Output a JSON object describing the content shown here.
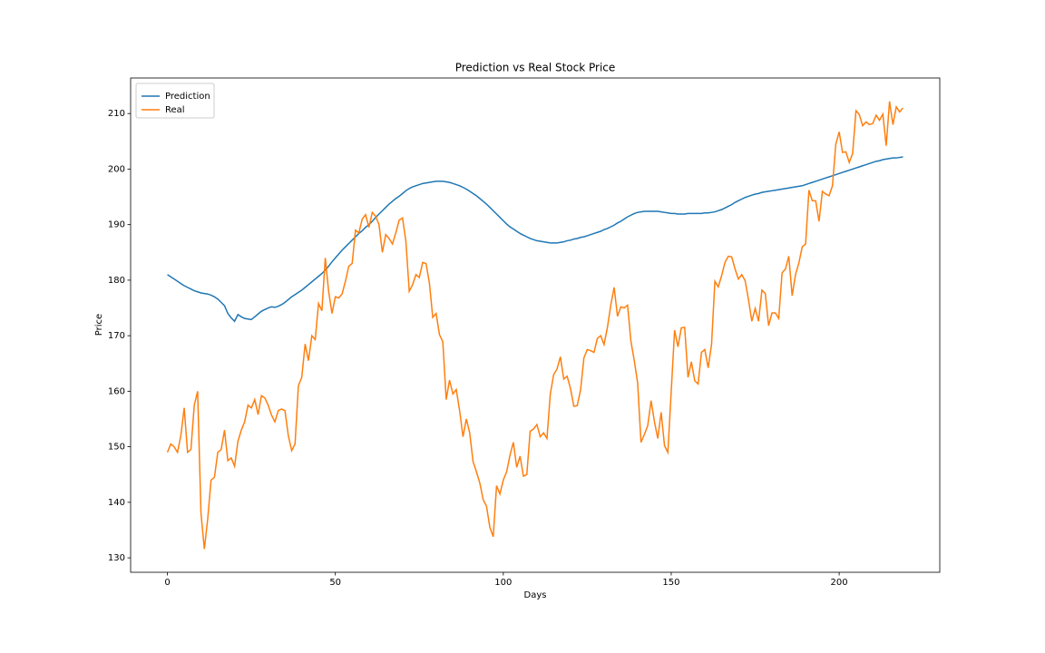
{
  "chart_data": {
    "type": "line",
    "title": "Prediction vs Real Stock Price",
    "x_label": "Days",
    "y_label": "Price",
    "x": [
      0,
      1,
      2,
      3,
      4,
      5,
      6,
      7,
      8,
      9,
      10,
      11,
      12,
      13,
      14,
      15,
      16,
      17,
      18,
      19,
      20,
      21,
      22,
      23,
      24,
      25,
      26,
      27,
      28,
      29,
      30,
      31,
      32,
      33,
      34,
      35,
      36,
      37,
      38,
      39,
      40,
      41,
      42,
      43,
      44,
      45,
      46,
      47,
      48,
      49,
      50,
      51,
      52,
      53,
      54,
      55,
      56,
      57,
      58,
      59,
      60,
      61,
      62,
      63,
      64,
      65,
      66,
      67,
      68,
      69,
      70,
      71,
      72,
      73,
      74,
      75,
      76,
      77,
      78,
      79,
      80,
      81,
      82,
      83,
      84,
      85,
      86,
      87,
      88,
      89,
      90,
      91,
      92,
      93,
      94,
      95,
      96,
      97,
      98,
      99,
      100,
      101,
      102,
      103,
      104,
      105,
      106,
      107,
      108,
      109,
      110,
      111,
      112,
      113,
      114,
      115,
      116,
      117,
      118,
      119,
      120,
      121,
      122,
      123,
      124,
      125,
      126,
      127,
      128,
      129,
      130,
      131,
      132,
      133,
      134,
      135,
      136,
      137,
      138,
      139,
      140,
      141,
      142,
      143,
      144,
      145,
      146,
      147,
      148,
      149,
      150,
      151,
      152,
      153,
      154,
      155,
      156,
      157,
      158,
      159,
      160,
      161,
      162,
      163,
      164,
      165,
      166,
      167,
      168,
      169,
      170,
      171,
      172,
      173,
      174,
      175,
      176,
      177,
      178,
      179,
      180,
      181,
      182,
      183,
      184,
      185,
      186,
      187,
      188,
      189,
      190,
      191,
      192,
      193,
      194,
      195,
      196,
      197,
      198,
      199,
      200,
      201,
      202,
      203,
      204,
      205,
      206,
      207,
      208,
      209,
      210,
      211,
      212,
      213,
      214,
      215,
      216,
      217,
      218,
      219
    ],
    "series": [
      {
        "name": "Prediction",
        "color": "#1f77b4",
        "values": [
          181.0,
          180.6,
          180.2,
          179.8,
          179.4,
          179.0,
          178.7,
          178.4,
          178.1,
          177.9,
          177.7,
          177.6,
          177.5,
          177.3,
          177.0,
          176.6,
          176.0,
          175.4,
          174.0,
          173.2,
          172.6,
          173.8,
          173.4,
          173.1,
          173.0,
          172.9,
          173.4,
          173.9,
          174.4,
          174.7,
          175.0,
          175.2,
          175.1,
          175.3,
          175.6,
          176.0,
          176.5,
          177.0,
          177.4,
          177.8,
          178.2,
          178.7,
          179.2,
          179.7,
          180.2,
          180.7,
          181.2,
          181.8,
          182.5,
          183.3,
          184.0,
          184.7,
          185.4,
          186.0,
          186.6,
          187.2,
          187.8,
          188.4,
          188.9,
          189.5,
          190.0,
          190.6,
          191.3,
          191.9,
          192.5,
          193.1,
          193.7,
          194.2,
          194.7,
          195.1,
          195.6,
          196.1,
          196.5,
          196.8,
          197.0,
          197.2,
          197.4,
          197.5,
          197.6,
          197.7,
          197.8,
          197.8,
          197.8,
          197.7,
          197.6,
          197.4,
          197.2,
          197.0,
          196.7,
          196.4,
          196.0,
          195.6,
          195.2,
          194.7,
          194.2,
          193.7,
          193.1,
          192.5,
          191.9,
          191.3,
          190.7,
          190.1,
          189.6,
          189.2,
          188.8,
          188.4,
          188.1,
          187.8,
          187.5,
          187.3,
          187.1,
          187.0,
          186.9,
          186.8,
          186.7,
          186.7,
          186.7,
          186.8,
          186.9,
          187.1,
          187.2,
          187.4,
          187.5,
          187.7,
          187.8,
          188.0,
          188.2,
          188.4,
          188.6,
          188.8,
          189.1,
          189.3,
          189.6,
          189.9,
          190.3,
          190.6,
          191.0,
          191.4,
          191.7,
          192.0,
          192.2,
          192.3,
          192.4,
          192.4,
          192.4,
          192.4,
          192.4,
          192.3,
          192.2,
          192.1,
          192.0,
          192.0,
          191.9,
          191.9,
          191.9,
          192.0,
          192.0,
          192.0,
          192.0,
          192.0,
          192.1,
          192.1,
          192.2,
          192.3,
          192.5,
          192.7,
          193.0,
          193.3,
          193.6,
          194.0,
          194.3,
          194.6,
          194.9,
          195.1,
          195.3,
          195.5,
          195.6,
          195.8,
          195.9,
          196.0,
          196.1,
          196.2,
          196.3,
          196.4,
          196.5,
          196.6,
          196.7,
          196.8,
          196.9,
          197.0,
          197.2,
          197.4,
          197.6,
          197.8,
          198.0,
          198.2,
          198.4,
          198.6,
          198.8,
          199.0,
          199.2,
          199.4,
          199.6,
          199.8,
          200.0,
          200.2,
          200.4,
          200.6,
          200.8,
          201.0,
          201.2,
          201.4,
          201.5,
          201.7,
          201.8,
          201.9,
          202.0,
          202.0,
          202.1,
          202.2
        ]
      },
      {
        "name": "Real",
        "color": "#ff7f0e",
        "values": [
          149.0,
          150.5,
          150.0,
          149.0,
          152.0,
          157.0,
          149.0,
          149.5,
          157.5,
          160.0,
          138.0,
          131.6,
          137.0,
          144.0,
          144.5,
          149.0,
          149.5,
          153.0,
          147.5,
          148.0,
          146.5,
          151.0,
          153.0,
          154.5,
          157.5,
          157.0,
          158.5,
          155.8,
          159.2,
          158.8,
          157.5,
          155.7,
          154.5,
          156.5,
          156.8,
          156.5,
          152.0,
          149.3,
          150.5,
          161.0,
          162.5,
          168.5,
          165.5,
          170.0,
          169.3,
          175.8,
          174.5,
          184.0,
          178.0,
          174.0,
          177.0,
          176.8,
          177.5,
          179.8,
          182.5,
          183.0,
          189.0,
          188.5,
          191.0,
          191.8,
          189.5,
          192.2,
          191.5,
          190.0,
          185.0,
          188.2,
          187.5,
          186.5,
          188.5,
          190.8,
          191.2,
          187.0,
          178.0,
          179.2,
          181.0,
          180.5,
          183.2,
          183.0,
          179.5,
          173.3,
          174.0,
          170.2,
          168.9,
          158.5,
          162.0,
          159.5,
          160.3,
          156.5,
          151.8,
          155.0,
          152.5,
          147.3,
          145.5,
          143.5,
          140.5,
          139.3,
          135.5,
          133.8,
          143.0,
          141.5,
          144.0,
          145.5,
          148.5,
          150.8,
          146.3,
          148.3,
          144.7,
          145.0,
          152.8,
          153.2,
          154.0,
          151.8,
          152.5,
          151.5,
          159.5,
          163.0,
          164.0,
          166.2,
          162.2,
          162.7,
          160.5,
          157.3,
          157.4,
          160.2,
          166.0,
          167.5,
          167.3,
          167.0,
          169.5,
          170.0,
          168.4,
          171.5,
          175.5,
          178.7,
          173.5,
          175.2,
          175.0,
          175.5,
          169.0,
          165.5,
          161.5,
          150.8,
          152.2,
          153.8,
          158.3,
          154.5,
          151.5,
          156.2,
          150.2,
          149.0,
          160.0,
          171.0,
          168.0,
          171.4,
          171.5,
          162.5,
          165.3,
          161.9,
          161.3,
          167.0,
          167.5,
          164.2,
          168.4,
          179.8,
          178.8,
          180.8,
          183.2,
          184.3,
          184.2,
          182.0,
          180.2,
          181.0,
          179.9,
          176.5,
          172.6,
          174.9,
          172.6,
          178.2,
          177.6,
          171.8,
          174.1,
          174.1,
          173.1,
          181.3,
          182.0,
          184.3,
          177.2,
          181.0,
          183.1,
          186.0,
          186.5,
          196.2,
          194.3,
          194.3,
          190.6,
          196.0,
          195.5,
          195.2,
          197.0,
          204.5,
          206.7,
          203.0,
          203.1,
          201.2,
          202.8,
          210.5,
          209.8,
          207.8,
          208.5,
          208.0,
          208.2,
          209.7,
          208.8,
          209.9,
          204.2,
          212.2,
          208.0,
          211.2,
          210.3,
          211.0
        ]
      }
    ],
    "xlim": [
      -10.95,
      229.95
    ],
    "xticks": [
      0,
      50,
      100,
      150,
      200
    ],
    "ylim": [
      127.4,
      216.4
    ],
    "yticks": [
      130,
      140,
      150,
      160,
      170,
      180,
      190,
      200,
      210
    ],
    "legend": "upper left",
    "grid": false
  }
}
